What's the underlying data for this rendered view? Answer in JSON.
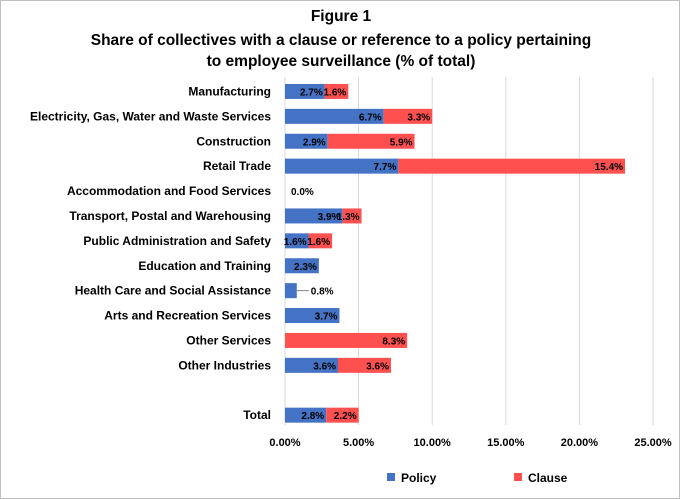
{
  "chart_data": {
    "type": "bar",
    "orientation": "horizontal",
    "stacked": true,
    "title": "Figure 1",
    "subtitle": "Share of collectives with a clause or reference to a policy pertaining to employee surveillance (% of total)",
    "subtitle_lines": [
      "Share of collectives with a clause or reference to a policy pertaining",
      "to employee surveillance (% of total)"
    ],
    "categories": [
      "Manufacturing",
      "Electricity, Gas, Water and Waste Services",
      "Construction",
      "Retail Trade",
      "Accommodation and Food Services",
      "Transport, Postal and Warehousing",
      "Public Administration and Safety",
      "Education and Training",
      "Health Care and Social Assistance",
      "Arts and Recreation Services",
      "Other Services",
      "Other Industries",
      "",
      "Total"
    ],
    "series": [
      {
        "name": "Policy",
        "color": "#4472c4",
        "values": [
          2.7,
          6.7,
          2.9,
          7.7,
          0,
          3.9,
          1.6,
          2.3,
          0.8,
          3.7,
          0,
          3.6,
          null,
          2.8
        ],
        "labels": [
          "2.7%",
          "6.7%",
          "2.9%",
          "7.7%",
          "0.0%",
          "3.9%",
          "1.6%",
          "2.3%",
          "0.8%",
          "3.7%",
          "",
          "3.6%",
          "",
          "2.8%"
        ]
      },
      {
        "name": "Clause",
        "color": "#ff5050",
        "values": [
          1.6,
          3.3,
          5.9,
          15.4,
          0,
          1.3,
          1.6,
          0,
          0,
          0,
          8.3,
          3.6,
          null,
          2.2
        ],
        "labels": [
          "1.6%",
          "3.3%",
          "5.9%",
          "15.4%",
          "",
          "1.3%",
          "1.6%",
          "",
          "",
          "",
          "8.3%",
          "3.6%",
          "",
          "2.2%"
        ]
      }
    ],
    "xlim": [
      0,
      25
    ],
    "xticks": [
      0,
      5,
      10,
      15,
      20,
      25
    ],
    "xtick_labels": [
      "0.00%",
      "5.00%",
      "10.00%",
      "15.00%",
      "20.00%",
      "25.00%"
    ],
    "grid": true,
    "legend_position": "bottom"
  }
}
